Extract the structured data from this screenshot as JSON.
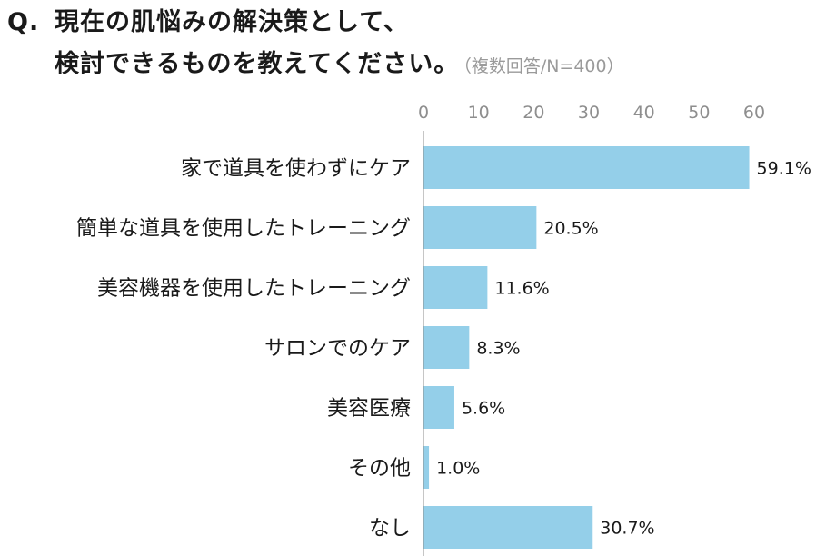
{
  "question": {
    "prefix": "Q.",
    "line1": "現在の肌悩みの解決策として、",
    "line2": "検討できるものを教えてください。",
    "note": "（複数回答/N=400）"
  },
  "chart_data": {
    "type": "bar",
    "orientation": "horizontal",
    "categories": [
      "家で道具を使わずにケア",
      "簡単な道具を使用したトレーニング",
      "美容機器を使用したトレーニング",
      "サロンでのケア",
      "美容医療",
      "その他",
      "なし"
    ],
    "values": [
      59.1,
      20.5,
      11.6,
      8.3,
      5.6,
      1.0,
      30.7
    ],
    "value_labels": [
      "59.1%",
      "20.5%",
      "11.6%",
      "8.3%",
      "5.6%",
      "1.0%",
      "30.7%"
    ],
    "xlim": [
      0,
      60
    ],
    "xticks": [
      0,
      10,
      20,
      30,
      40,
      50,
      60
    ],
    "xtick_labels": [
      "0",
      "10",
      "20",
      "30",
      "40",
      "50",
      "60"
    ],
    "axis_position": "top",
    "grid": false,
    "bar_color": "#94cfe9"
  }
}
